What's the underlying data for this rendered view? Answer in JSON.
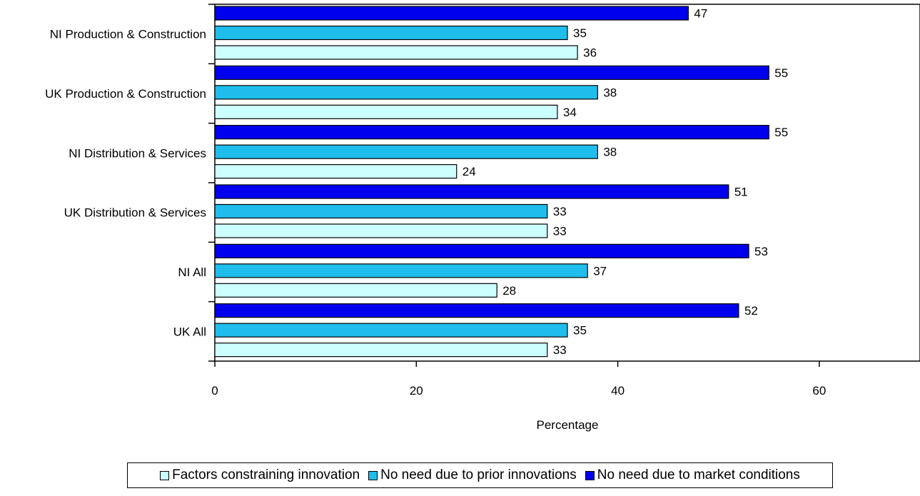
{
  "chart_data": {
    "type": "bar",
    "orientation": "horizontal",
    "categories": [
      "NI Production & Construction",
      "UK Production & Construction",
      "NI Distribution & Services",
      "UK Distribution & Services",
      "NI All",
      "UK All"
    ],
    "series": [
      {
        "name": "No need due to market conditions",
        "color": "#0000EE",
        "values": [
          47,
          55,
          55,
          51,
          53,
          52
        ]
      },
      {
        "name": "No need due to prior innovations",
        "color": "#1EBDEB",
        "values": [
          35,
          38,
          38,
          33,
          37,
          35
        ]
      },
      {
        "name": "Factors constraining innovation",
        "color": "#CCFFFF",
        "values": [
          36,
          34,
          24,
          33,
          28,
          33
        ]
      }
    ],
    "legend_order": [
      "Factors constraining innovation",
      "No need due to prior innovations",
      "No need due to market conditions"
    ],
    "xlabel": "Percentage",
    "ylabel": "",
    "xlim": [
      0,
      70
    ],
    "x_ticks": [
      0,
      20,
      40,
      60
    ],
    "grid": false,
    "legend_position": "bottom"
  }
}
